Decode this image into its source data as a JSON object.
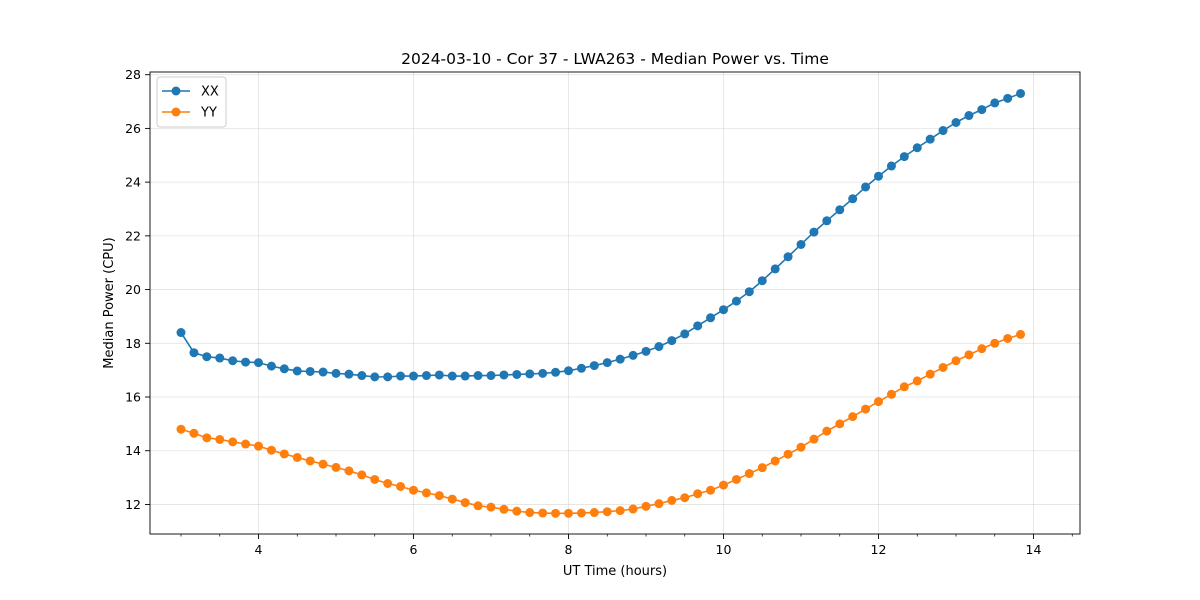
{
  "chart_data": {
    "type": "line",
    "title": "2024-03-10 - Cor 37 - LWA263 - Median Power vs. Time",
    "xlabel": "UT Time (hours)",
    "ylabel": "Median Power (CPU)",
    "xlim": [
      2.6,
      14.6
    ],
    "ylim": [
      10.9,
      28.1
    ],
    "xticks": [
      4,
      6,
      8,
      10,
      12,
      14
    ],
    "xtick_labels": [
      "4",
      "6",
      "8",
      "10",
      "12",
      "14"
    ],
    "xminor_step": 0.5,
    "yticks": [
      12,
      14,
      16,
      18,
      20,
      22,
      24,
      26,
      28
    ],
    "ytick_labels": [
      "12",
      "14",
      "16",
      "18",
      "20",
      "22",
      "24",
      "26",
      "28"
    ],
    "grid": true,
    "legend_position": "top-left",
    "x": [
      3.0,
      3.167,
      3.333,
      3.5,
      3.667,
      3.833,
      4.0,
      4.167,
      4.333,
      4.5,
      4.667,
      4.833,
      5.0,
      5.167,
      5.333,
      5.5,
      5.667,
      5.833,
      6.0,
      6.167,
      6.333,
      6.5,
      6.667,
      6.833,
      7.0,
      7.167,
      7.333,
      7.5,
      7.667,
      7.833,
      8.0,
      8.167,
      8.333,
      8.5,
      8.667,
      8.833,
      9.0,
      9.167,
      9.333,
      9.5,
      9.667,
      9.833,
      10.0,
      10.167,
      10.333,
      10.5,
      10.667,
      10.833,
      11.0,
      11.167,
      11.333,
      11.5,
      11.667,
      11.833,
      12.0,
      12.167,
      12.333,
      12.5,
      12.667,
      12.833,
      13.0,
      13.167,
      13.333,
      13.5,
      13.667,
      13.833
    ],
    "series": [
      {
        "name": "XX",
        "color": "#1f77b4",
        "values": [
          18.4,
          17.65,
          17.5,
          17.45,
          17.35,
          17.3,
          17.28,
          17.15,
          17.05,
          16.97,
          16.95,
          16.93,
          16.88,
          16.85,
          16.8,
          16.75,
          16.75,
          16.78,
          16.78,
          16.8,
          16.82,
          16.78,
          16.78,
          16.8,
          16.8,
          16.82,
          16.84,
          16.86,
          16.88,
          16.92,
          16.98,
          17.07,
          17.17,
          17.28,
          17.41,
          17.55,
          17.7,
          17.88,
          18.1,
          18.35,
          18.65,
          18.95,
          19.25,
          19.57,
          19.92,
          20.33,
          20.77,
          21.22,
          21.68,
          22.14,
          22.56,
          22.97,
          23.38,
          23.82,
          24.22,
          24.6,
          24.95,
          25.28,
          25.6,
          25.92,
          26.22,
          26.48,
          26.7,
          26.95,
          27.12,
          27.3
        ]
      },
      {
        "name": "YY",
        "color": "#ff7f0e",
        "values": [
          14.8,
          14.65,
          14.48,
          14.42,
          14.33,
          14.25,
          14.17,
          14.02,
          13.88,
          13.75,
          13.62,
          13.5,
          13.38,
          13.25,
          13.1,
          12.93,
          12.78,
          12.67,
          12.53,
          12.43,
          12.33,
          12.2,
          12.07,
          11.95,
          11.9,
          11.82,
          11.75,
          11.7,
          11.68,
          11.67,
          11.67,
          11.68,
          11.7,
          11.73,
          11.77,
          11.83,
          11.93,
          12.03,
          12.15,
          12.25,
          12.4,
          12.53,
          12.72,
          12.93,
          13.15,
          13.37,
          13.62,
          13.87,
          14.13,
          14.43,
          14.73,
          15.0,
          15.27,
          15.55,
          15.83,
          16.1,
          16.38,
          16.6,
          16.85,
          17.1,
          17.35,
          17.57,
          17.8,
          18.0,
          18.18,
          18.33
        ]
      }
    ]
  }
}
